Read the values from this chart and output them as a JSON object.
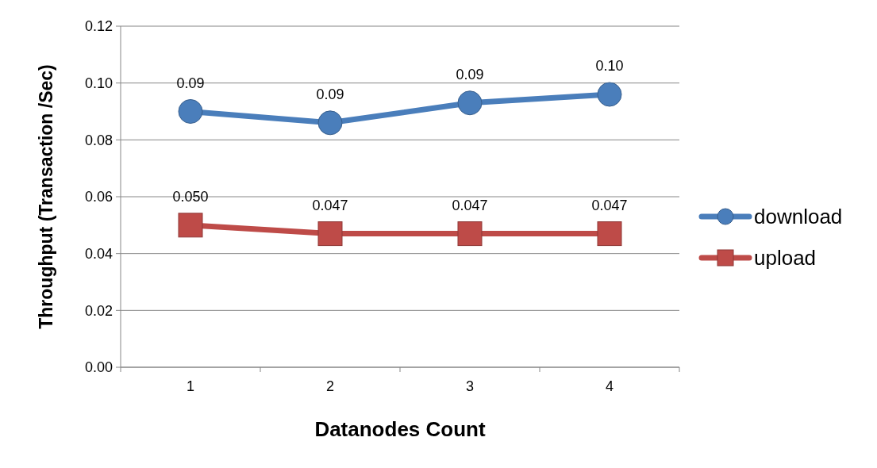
{
  "chart_data": {
    "type": "line",
    "xlabel": "Datanodes Count",
    "ylabel": "Throughput (Transaction /Sec)",
    "categories": [
      "1",
      "2",
      "3",
      "4"
    ],
    "series": [
      {
        "name": "download",
        "color": "#4a7ebb",
        "marker": "circle",
        "values": [
          0.09,
          0.086,
          0.093,
          0.096
        ],
        "value_labels": [
          "0.09",
          "0.09",
          "0.09",
          "0.10"
        ]
      },
      {
        "name": "upload",
        "color": "#be4b48",
        "marker": "square",
        "values": [
          0.05,
          0.047,
          0.047,
          0.047
        ],
        "value_labels": [
          "0.050",
          "0.047",
          "0.047",
          "0.047"
        ]
      }
    ],
    "ylim": [
      0,
      0.12
    ],
    "yticks": [
      {
        "value": 0,
        "label": "0.00"
      },
      {
        "value": 0.02,
        "label": "0.02"
      },
      {
        "value": 0.04,
        "label": "0.04"
      },
      {
        "value": 0.06,
        "label": "0.06"
      },
      {
        "value": 0.08,
        "label": "0.08"
      },
      {
        "value": 0.1,
        "label": "0.10"
      },
      {
        "value": 0.12,
        "label": "0.12"
      }
    ],
    "grid": "y",
    "legend": "right"
  }
}
